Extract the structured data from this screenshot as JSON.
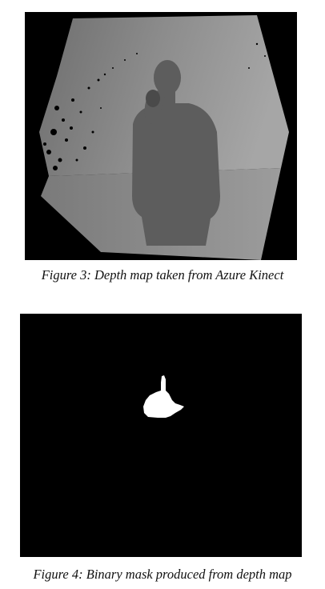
{
  "figures": [
    {
      "caption": "Figure 3: Depth map taken from Azure Kinect",
      "image": "depth-map"
    },
    {
      "caption": "Figure 4: Binary mask produced from depth map",
      "image": "binary-mask"
    }
  ],
  "colors": {
    "background": "#000000",
    "mask": "#ffffff",
    "depth_near": "#5a5a5a",
    "depth_far": "#a8a8a8"
  }
}
